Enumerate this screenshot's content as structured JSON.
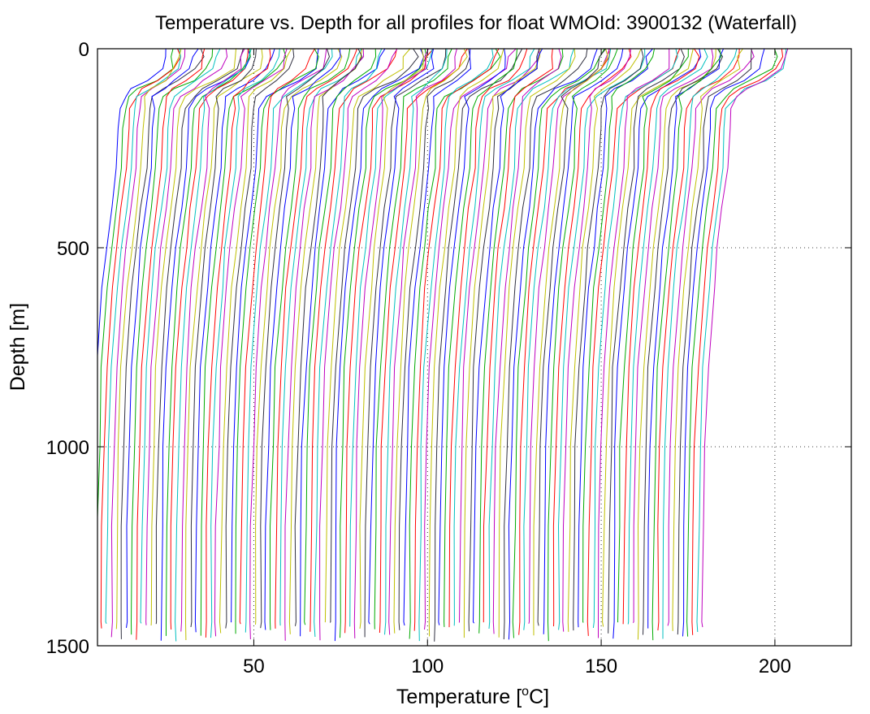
{
  "chart_data": {
    "type": "line",
    "title": "Temperature vs. Depth for all profiles for float WMOId: 3900132 (Waterfall)",
    "xlabel_main": "Temperature [",
    "xlabel_sup": "o",
    "xlabel_tail": "C]",
    "ylabel": "Depth [m]",
    "xlim": [
      5,
      222
    ],
    "ylim": [
      0,
      1500
    ],
    "y_reversed": true,
    "xticks": [
      50,
      100,
      150,
      200
    ],
    "yticks": [
      0,
      500,
      1000,
      1500
    ],
    "grid": "dotted",
    "series_colors": [
      "#0000ff",
      "#00aa00",
      "#ff0000",
      "#00bfbf",
      "#bf00bf",
      "#bfbf00",
      "#303040"
    ],
    "profile_count": 124,
    "profile_offset_step": 1.43,
    "base_profile": {
      "depth": [
        0,
        20,
        50,
        80,
        100,
        120,
        150,
        200,
        300,
        400,
        500,
        600,
        800,
        1000,
        1200,
        1440
      ],
      "temperature": [
        25.5,
        25.2,
        24.0,
        19.5,
        15.5,
        12.5,
        11.5,
        11.0,
        10.5,
        9.0,
        7.6,
        6.5,
        4.8,
        4.0,
        3.5,
        3.3
      ]
    }
  }
}
